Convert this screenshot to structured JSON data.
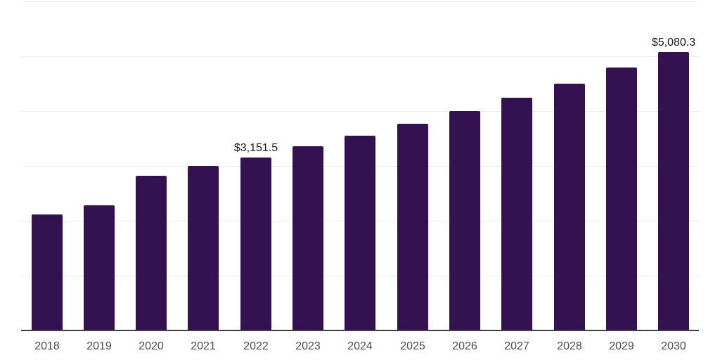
{
  "chart_data": {
    "type": "bar",
    "title": "",
    "xlabel": "",
    "ylabel": "",
    "categories": [
      "2018",
      "2019",
      "2020",
      "2021",
      "2022",
      "2023",
      "2024",
      "2025",
      "2026",
      "2027",
      "2028",
      "2029",
      "2030"
    ],
    "values": [
      2120,
      2280,
      2825,
      3005,
      3151.5,
      3355,
      3545,
      3765,
      4005,
      4245,
      4500,
      4800,
      5080.3
    ],
    "data_labels": [
      "",
      "",
      "",
      "",
      "$3,151.5",
      "",
      "",
      "",
      "",
      "",
      "",
      "",
      "$5,080.3"
    ],
    "ylim": [
      0,
      6000
    ],
    "gridline_step": 1000,
    "grid": "horizontal-only",
    "legend": "none",
    "y_axis_labels_visible": false,
    "colors": {
      "bar": "#341150",
      "gridline": "#ededed",
      "axis": "#404040",
      "tick_label": "#4d4d4d",
      "data_label": "#1a1a1a",
      "background": "#ffffff"
    }
  }
}
